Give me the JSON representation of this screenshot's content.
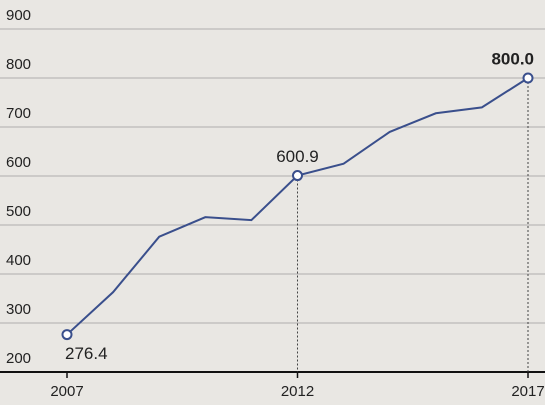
{
  "chart_data": {
    "type": "line",
    "x": [
      2007,
      2008,
      2009,
      2010,
      2011,
      2012,
      2013,
      2014,
      2015,
      2016,
      2017
    ],
    "series": [
      {
        "name": null,
        "color": "#3a4f8c",
        "values": [
          276.4,
          363,
          476,
          516,
          510,
          600.9,
          625,
          690,
          728,
          740,
          800
        ],
        "value_labels": [
          "276.4",
          null,
          null,
          null,
          null,
          "600.9",
          null,
          null,
          null,
          null,
          "800.0"
        ]
      }
    ],
    "xlim": [
      2007,
      2017
    ],
    "xticks": [
      2007,
      2012,
      2017
    ],
    "ylim": [
      200,
      900
    ],
    "yticks": [
      200,
      300,
      400,
      500,
      600,
      700,
      800,
      900
    ],
    "grid": true
  }
}
